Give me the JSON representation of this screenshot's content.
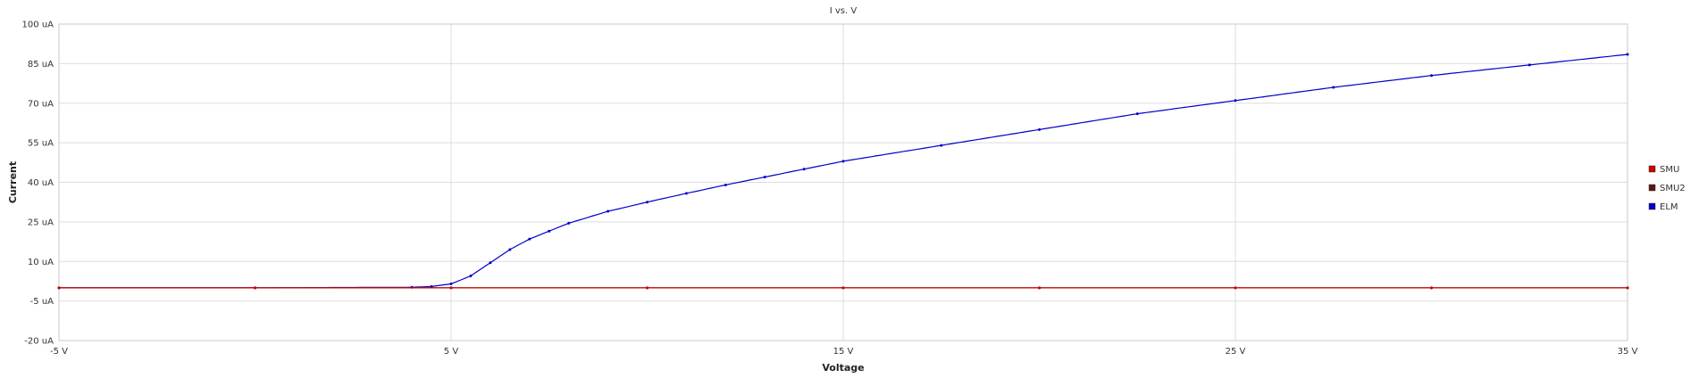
{
  "chart_data": {
    "type": "line",
    "title": "I vs. V",
    "xlabel": "Voltage",
    "ylabel": "Current",
    "xlim": [
      -5,
      35
    ],
    "ylim": [
      -20,
      100
    ],
    "x_ticks": [
      -5,
      5,
      15,
      25,
      35
    ],
    "x_tick_labels": [
      "-5 V",
      "5 V",
      "15 V",
      "25 V",
      "35 V"
    ],
    "y_ticks": [
      -20,
      -5,
      10,
      25,
      40,
      55,
      70,
      85,
      100
    ],
    "y_tick_labels": [
      "-20 uA",
      "-5 uA",
      "10 uA",
      "25 uA",
      "40 uA",
      "55 uA",
      "70 uA",
      "85 uA",
      "100 uA"
    ],
    "grid": true,
    "legend_position": "right",
    "series": [
      {
        "name": "SMU",
        "color": "#cc0000",
        "x": [
          -5,
          0,
          5,
          10,
          15,
          20,
          25,
          30,
          35
        ],
        "y": [
          0,
          0,
          0,
          0,
          0,
          0,
          0,
          0,
          0
        ]
      },
      {
        "name": "SMU2",
        "color": "#5a1a0a",
        "x": [
          -5,
          0,
          5,
          10,
          15,
          20,
          25,
          30,
          35
        ],
        "y": [
          0,
          0,
          0,
          0,
          0,
          0,
          0,
          0,
          0
        ]
      },
      {
        "name": "ELM",
        "color": "#0000cc",
        "x": [
          -5,
          0,
          4,
          4.5,
          5,
          5.5,
          6,
          6.5,
          7,
          7.5,
          8,
          9,
          10,
          11,
          12,
          13,
          14,
          15,
          17.5,
          20,
          22.5,
          25,
          27.5,
          30,
          32.5,
          35
        ],
        "y": [
          0,
          0,
          0.2,
          0.5,
          1.5,
          4.5,
          9.5,
          14.5,
          18.5,
          21.5,
          24.5,
          29,
          32.5,
          35.8,
          39,
          42,
          45,
          48,
          54,
          60,
          66,
          71,
          76,
          80.5,
          84.5,
          88.5
        ]
      }
    ]
  }
}
